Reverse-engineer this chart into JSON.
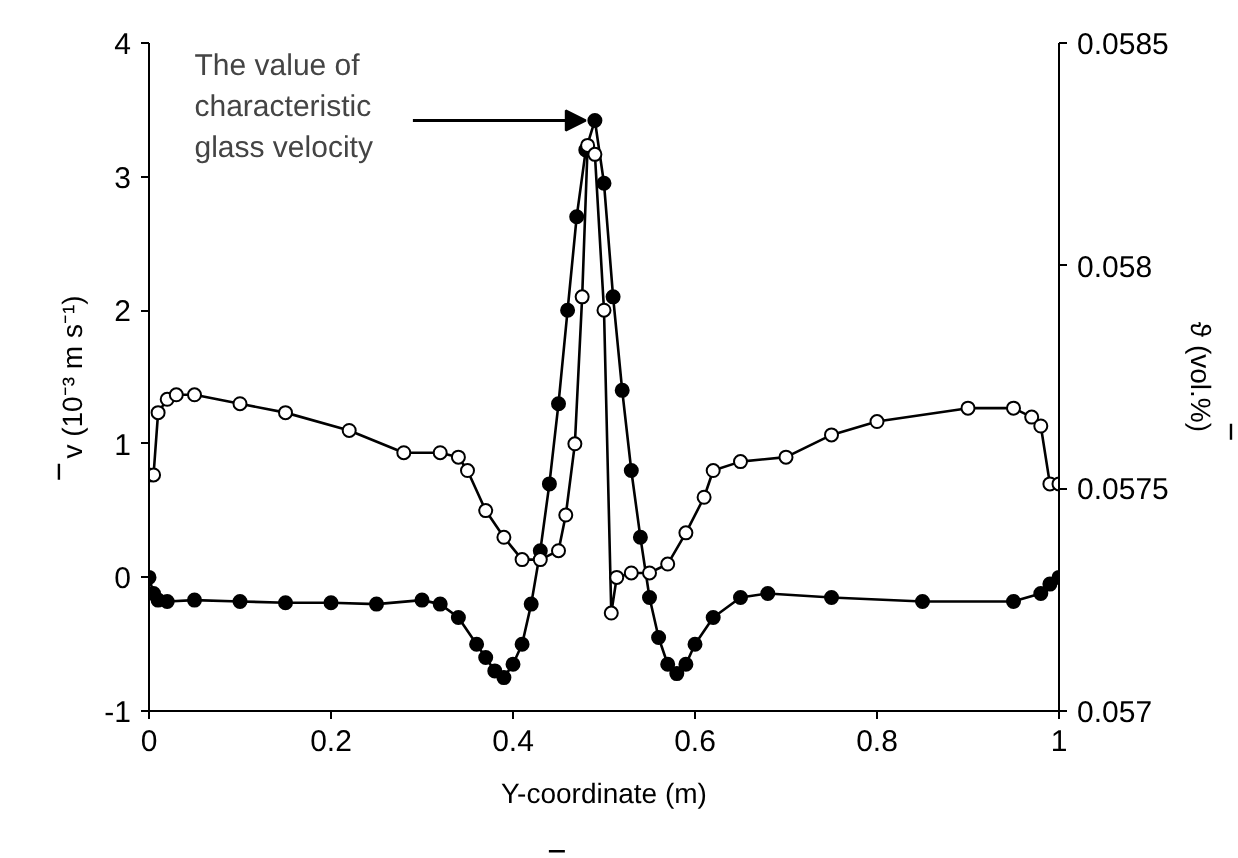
{
  "chart_data": {
    "type": "line",
    "xlabel": "Y-coordinate (m)",
    "ylabel": "v (10⁻³ m s⁻¹)",
    "y2label": "ϑ (vol.%)",
    "xlim": [
      0,
      1
    ],
    "xticks": [
      0,
      0.2,
      0.4,
      0.6,
      0.8,
      1
    ],
    "ylim": [
      -1,
      4
    ],
    "yticks": [
      -1,
      0,
      1,
      2,
      3,
      4
    ],
    "y2lim": [
      0.057,
      0.0585
    ],
    "y2ticks": [
      0.057,
      0.0575,
      0.058,
      0.0585
    ],
    "grid": false,
    "series": [
      {
        "color": "#000000",
        "marker": "circle",
        "x": [
          0,
          0.005,
          0.01,
          0.02,
          0.05,
          0.1,
          0.15,
          0.2,
          0.25,
          0.3,
          0.32,
          0.34,
          0.36,
          0.37,
          0.38,
          0.39,
          0.4,
          0.41,
          0.42,
          0.43,
          0.44,
          0.45,
          0.46,
          0.47,
          0.48,
          0.49,
          0.5,
          0.51,
          0.52,
          0.53,
          0.54,
          0.55,
          0.56,
          0.57,
          0.58,
          0.59,
          0.6,
          0.62,
          0.65,
          0.68,
          0.75,
          0.85,
          0.95,
          0.98,
          0.99,
          1.0
        ],
        "values": [
          0,
          -0.12,
          -0.17,
          -0.18,
          -0.17,
          -0.18,
          -0.19,
          -0.19,
          -0.2,
          -0.17,
          -0.2,
          -0.3,
          -0.5,
          -0.6,
          -0.7,
          -0.75,
          -0.65,
          -0.5,
          -0.2,
          0.2,
          0.7,
          1.3,
          2.0,
          2.7,
          3.2,
          3.42,
          2.95,
          2.1,
          1.4,
          0.8,
          0.3,
          -0.15,
          -0.45,
          -0.65,
          -0.72,
          -0.65,
          -0.5,
          -0.3,
          -0.15,
          -0.12,
          -0.15,
          -0.18,
          -0.18,
          -0.12,
          -0.05,
          0
        ]
      },
      {
        "color": "#000000",
        "marker": "circle_open",
        "axis": "y2",
        "x": [
          0,
          0.005,
          0.01,
          0.02,
          0.03,
          0.05,
          0.1,
          0.15,
          0.22,
          0.28,
          0.32,
          0.34,
          0.35,
          0.37,
          0.39,
          0.41,
          0.43,
          0.45,
          0.458,
          0.468,
          0.476,
          0.482,
          0.49,
          0.5,
          0.508,
          0.514,
          0.53,
          0.55,
          0.57,
          0.59,
          0.61,
          0.62,
          0.65,
          0.7,
          0.75,
          0.8,
          0.9,
          0.95,
          0.97,
          0.98,
          0.99,
          1.0
        ],
        "values": [
          0.05753,
          0.05753,
          0.05767,
          0.0577,
          0.05771,
          0.05771,
          0.05769,
          0.05767,
          0.05763,
          0.05758,
          0.05758,
          0.05757,
          0.05754,
          0.05745,
          0.05739,
          0.05734,
          0.05734,
          0.05736,
          0.05744,
          0.0576,
          0.05793,
          0.05827,
          0.05825,
          0.0579,
          0.05722,
          0.0573,
          0.05731,
          0.05731,
          0.05733,
          0.0574,
          0.05748,
          0.05754,
          0.05756,
          0.05757,
          0.05762,
          0.05765,
          0.05768,
          0.05768,
          0.05766,
          0.05764,
          0.05751,
          0.05751
        ]
      }
    ],
    "annotations": [
      "The value of characteristic glass velocity"
    ]
  }
}
